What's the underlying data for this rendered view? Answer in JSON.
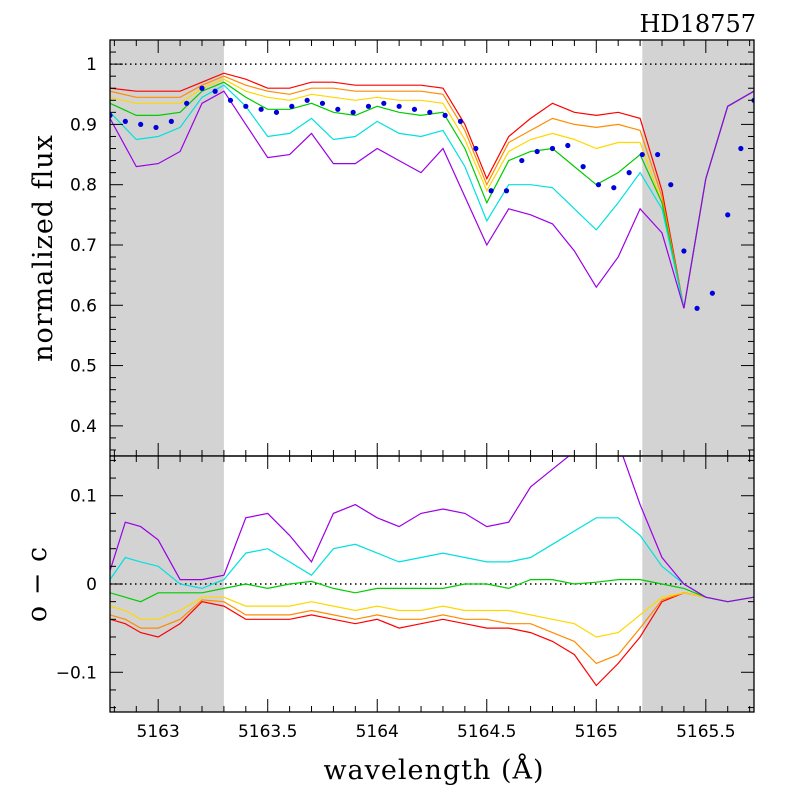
{
  "chart_data": {
    "title": "HD18757",
    "xlabel": "wavelength (Å)",
    "xlim": [
      5162.78,
      5165.72
    ],
    "xticks": [
      5163,
      5163.5,
      5164,
      5164.5,
      5165,
      5165.5
    ],
    "xtick_labels": [
      "5163",
      "5163.5",
      "5164",
      "5164.5",
      "5165",
      "5165.5"
    ],
    "masked_regions": [
      [
        5162.78,
        5163.3
      ],
      [
        5165.21,
        5165.72
      ]
    ],
    "mask_color": "#d3d3d3",
    "series_colors": [
      "#ff0000",
      "#ff8c00",
      "#ffd700",
      "#00cc00",
      "#00e0e0",
      "#9b00e6"
    ],
    "panels": [
      {
        "type": "line",
        "ylabel": "normalized flux",
        "ylim": [
          0.35,
          1.04
        ],
        "yticks": [
          0.4,
          0.5,
          0.6,
          0.7,
          0.8,
          0.9,
          1
        ],
        "ytick_labels": [
          "0.4",
          "0.5",
          "0.6",
          "0.7",
          "0.8",
          "0.9",
          "1"
        ],
        "reference_line": 1,
        "x": [
          5162.78,
          5162.9,
          5163.0,
          5163.1,
          5163.2,
          5163.3,
          5163.4,
          5163.5,
          5163.6,
          5163.7,
          5163.8,
          5163.9,
          5164.0,
          5164.1,
          5164.2,
          5164.3,
          5164.4,
          5164.5,
          5164.6,
          5164.7,
          5164.8,
          5164.9,
          5165.0,
          5165.1,
          5165.2,
          5165.3,
          5165.4,
          5165.5,
          5165.6,
          5165.72
        ],
        "series": [
          {
            "values": [
              0.96,
              0.955,
              0.955,
              0.955,
              0.97,
              0.985,
              0.975,
              0.96,
              0.96,
              0.97,
              0.97,
              0.965,
              0.965,
              0.965,
              0.965,
              0.96,
              0.9,
              0.81,
              0.88,
              0.91,
              0.935,
              0.92,
              0.915,
              0.92,
              0.91,
              0.79,
              0.595,
              0.81,
              0.93,
              0.955
            ]
          },
          {
            "values": [
              0.955,
              0.945,
              0.945,
              0.945,
              0.965,
              0.98,
              0.965,
              0.955,
              0.95,
              0.96,
              0.96,
              0.955,
              0.955,
              0.955,
              0.955,
              0.95,
              0.89,
              0.8,
              0.87,
              0.89,
              0.91,
              0.9,
              0.895,
              0.9,
              0.89,
              0.78,
              0.595,
              0.81,
              0.93,
              0.955
            ]
          },
          {
            "values": [
              0.945,
              0.935,
              0.935,
              0.935,
              0.96,
              0.975,
              0.955,
              0.945,
              0.94,
              0.95,
              0.945,
              0.94,
              0.945,
              0.94,
              0.94,
              0.935,
              0.875,
              0.79,
              0.855,
              0.875,
              0.885,
              0.875,
              0.86,
              0.87,
              0.87,
              0.77,
              0.595,
              0.81,
              0.93,
              0.955
            ]
          },
          {
            "values": [
              0.935,
              0.915,
              0.915,
              0.92,
              0.955,
              0.97,
              0.945,
              0.925,
              0.925,
              0.935,
              0.92,
              0.915,
              0.93,
              0.92,
              0.915,
              0.92,
              0.86,
              0.77,
              0.84,
              0.855,
              0.86,
              0.83,
              0.8,
              0.82,
              0.85,
              0.77,
              0.595,
              0.81,
              0.93,
              0.955
            ]
          },
          {
            "values": [
              0.92,
              0.875,
              0.88,
              0.895,
              0.945,
              0.965,
              0.93,
              0.88,
              0.885,
              0.91,
              0.875,
              0.88,
              0.905,
              0.885,
              0.88,
              0.89,
              0.83,
              0.74,
              0.8,
              0.8,
              0.795,
              0.76,
              0.725,
              0.77,
              0.82,
              0.76,
              0.595,
              0.81,
              0.93,
              0.955
            ]
          },
          {
            "values": [
              0.91,
              0.83,
              0.835,
              0.855,
              0.935,
              0.955,
              0.9,
              0.845,
              0.85,
              0.885,
              0.835,
              0.835,
              0.86,
              0.84,
              0.82,
              0.86,
              0.78,
              0.7,
              0.76,
              0.75,
              0.735,
              0.69,
              0.63,
              0.68,
              0.76,
              0.72,
              0.595,
              0.81,
              0.93,
              0.955
            ]
          }
        ],
        "observed": {
          "x": [
            5162.78,
            5162.85,
            5162.92,
            5162.99,
            5163.06,
            5163.13,
            5163.2,
            5163.26,
            5163.33,
            5163.4,
            5163.47,
            5163.54,
            5163.61,
            5163.68,
            5163.75,
            5163.82,
            5163.89,
            5163.96,
            5164.03,
            5164.1,
            5164.17,
            5164.24,
            5164.31,
            5164.38,
            5164.45,
            5164.52,
            5164.59,
            5164.66,
            5164.73,
            5164.8,
            5164.87,
            5164.94,
            5165.01,
            5165.08,
            5165.15,
            5165.21,
            5165.28,
            5165.34,
            5165.4,
            5165.46,
            5165.53,
            5165.6,
            5165.66,
            5165.72
          ],
          "values": [
            0.915,
            0.905,
            0.9,
            0.895,
            0.905,
            0.935,
            0.96,
            0.955,
            0.94,
            0.93,
            0.925,
            0.92,
            0.93,
            0.94,
            0.935,
            0.925,
            0.92,
            0.93,
            0.935,
            0.93,
            0.925,
            0.92,
            0.915,
            0.905,
            0.86,
            0.79,
            0.79,
            0.84,
            0.855,
            0.86,
            0.865,
            0.83,
            0.8,
            0.795,
            0.82,
            0.85,
            0.85,
            0.8,
            0.69,
            0.595,
            0.62,
            0.75,
            0.86,
            0.94
          ],
          "color": "#0000dd"
        }
      },
      {
        "type": "line",
        "ylabel": "o − c",
        "ylim": [
          -0.145,
          0.145
        ],
        "yticks": [
          -0.1,
          0,
          0.1
        ],
        "ytick_labels": [
          "−0.1",
          "0",
          "0.1"
        ],
        "reference_line": 0,
        "x": [
          5162.78,
          5162.85,
          5162.92,
          5163.0,
          5163.1,
          5163.2,
          5163.3,
          5163.4,
          5163.5,
          5163.6,
          5163.7,
          5163.8,
          5163.9,
          5164.0,
          5164.1,
          5164.2,
          5164.3,
          5164.4,
          5164.5,
          5164.6,
          5164.7,
          5164.8,
          5164.9,
          5165.0,
          5165.1,
          5165.2,
          5165.3,
          5165.4,
          5165.5,
          5165.6,
          5165.72
        ],
        "series": [
          {
            "values": [
              -0.04,
              -0.045,
              -0.055,
              -0.06,
              -0.045,
              -0.02,
              -0.025,
              -0.04,
              -0.04,
              -0.04,
              -0.035,
              -0.04,
              -0.045,
              -0.04,
              -0.05,
              -0.045,
              -0.04,
              -0.045,
              -0.05,
              -0.05,
              -0.055,
              -0.065,
              -0.08,
              -0.115,
              -0.09,
              -0.06,
              -0.02,
              -0.01,
              -0.015,
              -0.02,
              -0.015
            ]
          },
          {
            "values": [
              -0.035,
              -0.04,
              -0.05,
              -0.05,
              -0.04,
              -0.018,
              -0.02,
              -0.035,
              -0.035,
              -0.035,
              -0.03,
              -0.035,
              -0.04,
              -0.035,
              -0.04,
              -0.04,
              -0.035,
              -0.04,
              -0.04,
              -0.045,
              -0.045,
              -0.055,
              -0.065,
              -0.09,
              -0.08,
              -0.05,
              -0.018,
              -0.01,
              -0.015,
              -0.02,
              -0.015
            ]
          },
          {
            "values": [
              -0.025,
              -0.03,
              -0.04,
              -0.04,
              -0.03,
              -0.015,
              -0.015,
              -0.025,
              -0.025,
              -0.025,
              -0.02,
              -0.025,
              -0.03,
              -0.025,
              -0.03,
              -0.03,
              -0.025,
              -0.03,
              -0.03,
              -0.03,
              -0.035,
              -0.04,
              -0.045,
              -0.06,
              -0.055,
              -0.035,
              -0.015,
              -0.01,
              -0.015,
              -0.02,
              -0.015
            ]
          },
          {
            "values": [
              -0.01,
              -0.015,
              -0.02,
              -0.01,
              -0.01,
              -0.01,
              -0.005,
              0.0,
              -0.005,
              0.0,
              0.003,
              -0.005,
              -0.01,
              -0.005,
              -0.005,
              -0.005,
              -0.005,
              0.0,
              0.0,
              -0.005,
              0.005,
              0.005,
              0.0,
              0.002,
              0.005,
              0.005,
              0.0,
              -0.005,
              -0.015,
              -0.02,
              -0.015
            ]
          },
          {
            "values": [
              0.005,
              0.03,
              0.025,
              0.02,
              0.0,
              -0.005,
              0.005,
              0.035,
              0.04,
              0.025,
              0.01,
              0.04,
              0.045,
              0.035,
              0.025,
              0.03,
              0.035,
              0.03,
              0.025,
              0.025,
              0.03,
              0.045,
              0.06,
              0.075,
              0.075,
              0.055,
              0.02,
              0.0,
              -0.015,
              -0.02,
              -0.015
            ]
          },
          {
            "values": [
              0.015,
              0.07,
              0.065,
              0.05,
              0.005,
              0.005,
              0.01,
              0.075,
              0.08,
              0.055,
              0.025,
              0.08,
              0.09,
              0.075,
              0.065,
              0.08,
              0.085,
              0.08,
              0.065,
              0.07,
              0.11,
              0.13,
              0.15,
              0.17,
              0.16,
              0.09,
              0.03,
              0.0,
              -0.015,
              -0.02,
              -0.015
            ]
          }
        ]
      }
    ]
  }
}
